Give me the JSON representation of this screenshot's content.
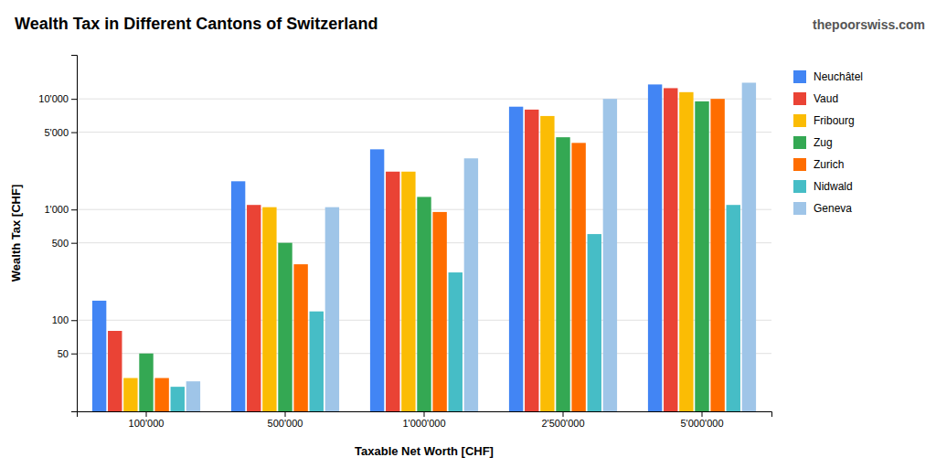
{
  "chart_data": {
    "type": "bar",
    "title": "Wealth Tax in Different Cantons of Switzerland",
    "annotations": [
      "thepoorswiss.com"
    ],
    "xlabel": "Taxable Net Worth [CHF]",
    "ylabel": "Wealth Tax [CHF]",
    "categories": [
      "100'000",
      "500'000",
      "1'000'000",
      "2'500'000",
      "5'000'000"
    ],
    "series": [
      {
        "name": "Neuchâtel",
        "color": "#4285F4",
        "values": [
          150,
          1800,
          3500,
          8500,
          13500
        ]
      },
      {
        "name": "Vaud",
        "color": "#EA4335",
        "values": [
          80,
          1100,
          2200,
          8000,
          12500
        ]
      },
      {
        "name": "Fribourg",
        "color": "#FBBC04",
        "values": [
          30,
          1050,
          2200,
          7000,
          11500
        ]
      },
      {
        "name": "Zug",
        "color": "#34A853",
        "values": [
          50,
          500,
          1300,
          4500,
          9500
        ]
      },
      {
        "name": "Zurich",
        "color": "#FF6D00",
        "values": [
          30,
          320,
          950,
          4000,
          10000
        ]
      },
      {
        "name": "Nidwald",
        "color": "#46BDC6",
        "values": [
          25,
          120,
          270,
          600,
          1100
        ]
      },
      {
        "name": "Geneva",
        "color": "#9FC5E8",
        "values": [
          28,
          1050,
          2900,
          10000,
          14000
        ]
      }
    ],
    "log": "y",
    "ylim": [
      15,
      25000
    ],
    "yticks": [
      50,
      100,
      500,
      {
        "value": 1000,
        "label": "1'000"
      },
      {
        "value": 5000,
        "label": "5'000"
      },
      {
        "value": 10000,
        "label": "10'000"
      }
    ],
    "grid": true,
    "legend": "right"
  }
}
